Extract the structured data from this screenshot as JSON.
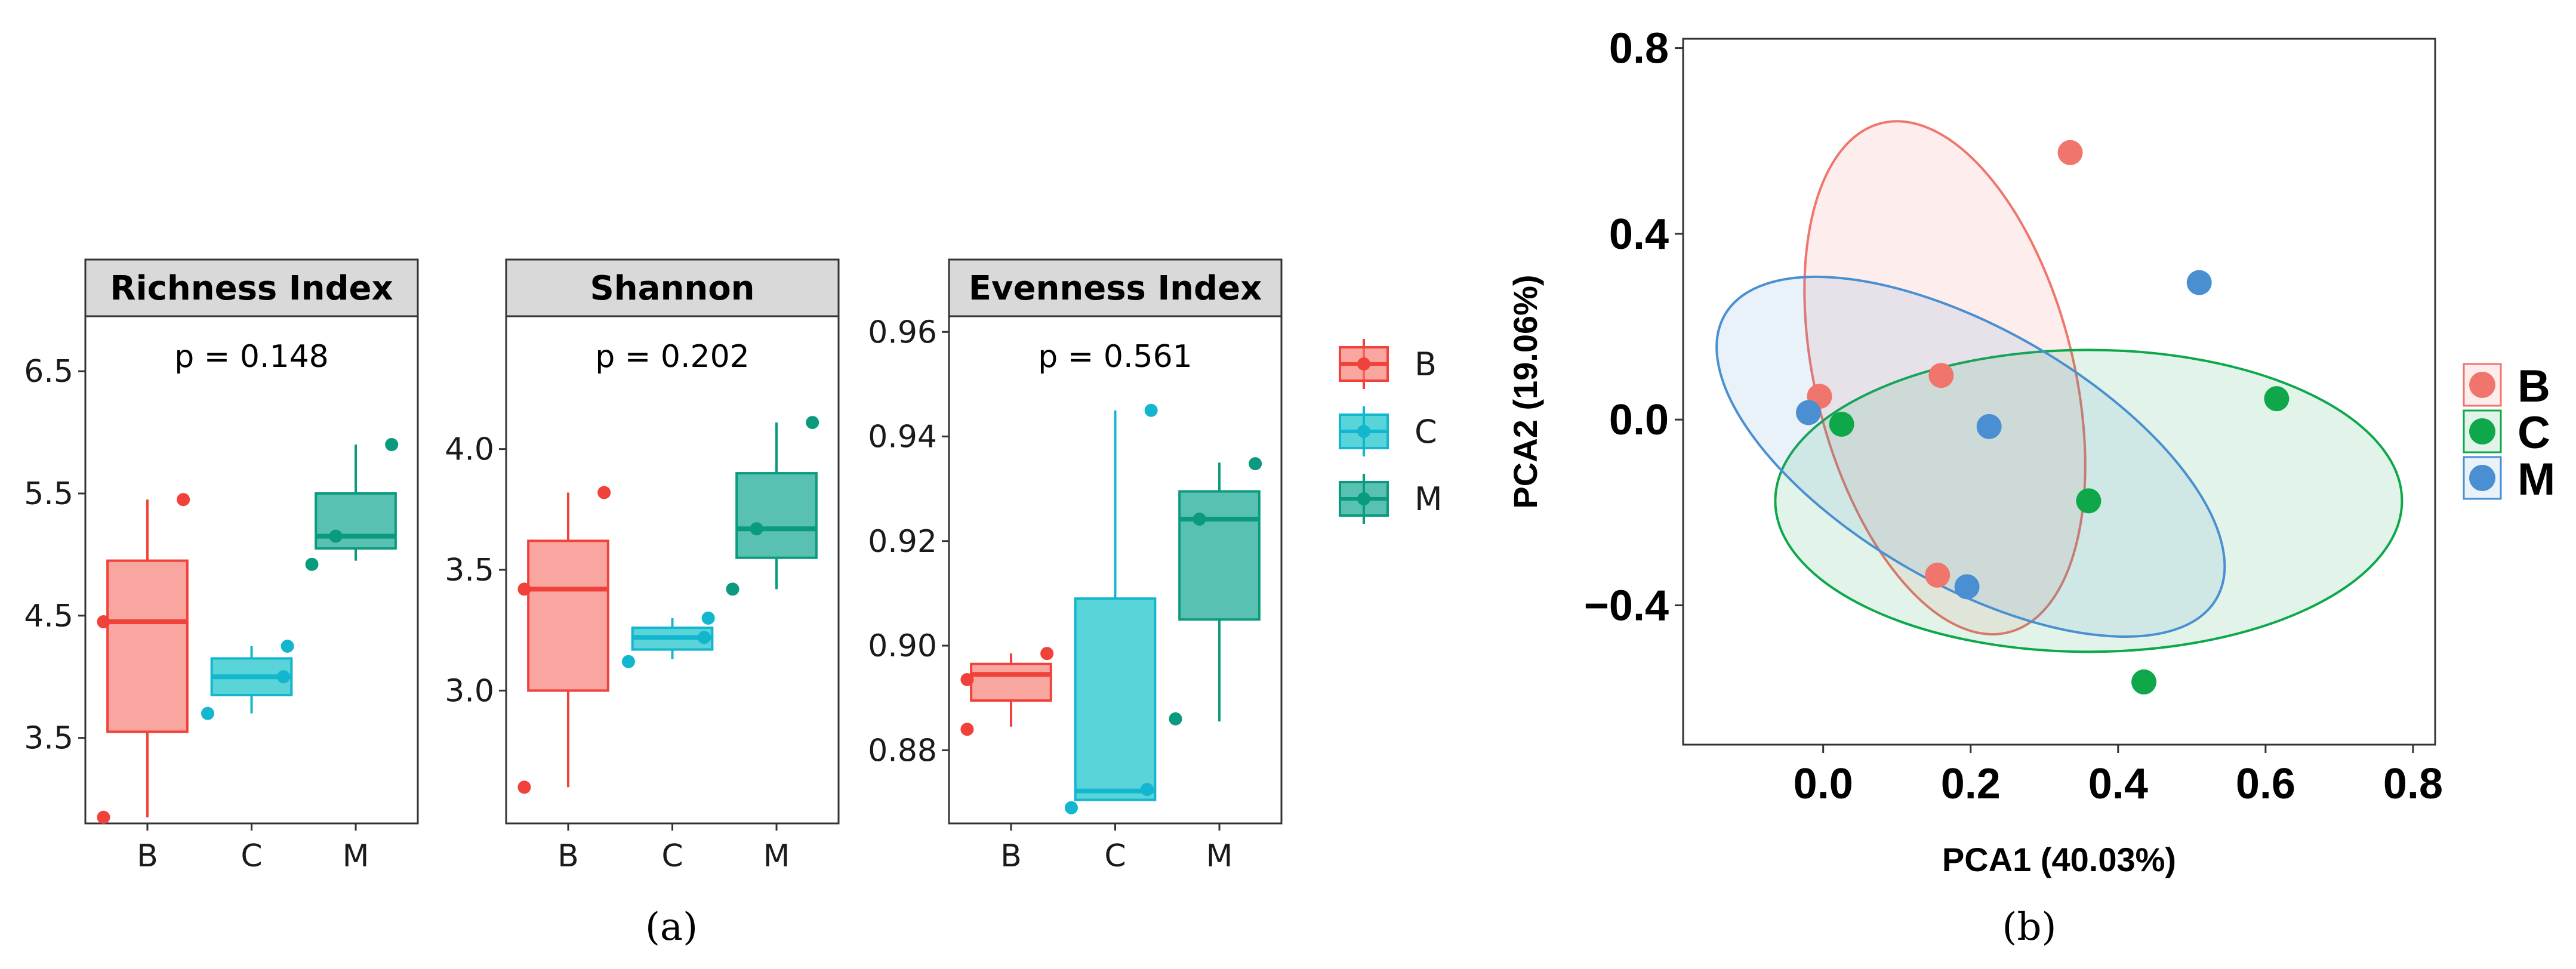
{
  "groups": [
    "B",
    "C",
    "M"
  ],
  "colors": {
    "box": {
      "B": "#F8766D",
      "C": "#00BFC4",
      "M": "#00A087"
    },
    "box_line": {
      "B": "#F0413A",
      "C": "#13B6CF",
      "M": "#0A9A7E"
    },
    "pca": {
      "B": "#F0766D",
      "C": "#0EA84A",
      "M": "#4A8FD1"
    }
  },
  "captions": {
    "a": "(a)",
    "b": "(b)"
  },
  "chart_data": [
    {
      "type": "box",
      "title": "Richness Index",
      "p_label": "p = 0.148",
      "ylim": [
        2.8,
        6.95
      ],
      "yticks": [
        3.5,
        4.5,
        5.5,
        6.5
      ],
      "ytick_labels": [
        "3.5",
        "4.5",
        "5.5",
        "6.5"
      ],
      "categories": [
        "B",
        "C",
        "M"
      ],
      "boxes": [
        {
          "group": "B",
          "q1": 3.55,
          "median": 4.45,
          "q3": 4.95,
          "lower": 2.85,
          "upper": 5.45,
          "mean": 4.45,
          "points": [
            5.45,
            2.85
          ]
        },
        {
          "group": "C",
          "q1": 3.85,
          "median": 4.0,
          "q3": 4.15,
          "lower": 3.7,
          "upper": 4.25,
          "mean": 4.0,
          "points": [
            4.25,
            3.7
          ]
        },
        {
          "group": "M",
          "q1": 5.05,
          "median": 5.15,
          "q3": 5.5,
          "lower": 4.95,
          "upper": 5.9,
          "mean": 5.15,
          "points": [
            5.9,
            4.92
          ]
        }
      ]
    },
    {
      "type": "box",
      "title": "Shannon",
      "p_label": "p = 0.202",
      "ylim": [
        2.45,
        4.55
      ],
      "yticks": [
        3.0,
        3.5,
        4.0
      ],
      "ytick_labels": [
        "3.0",
        "3.5",
        "4.0"
      ],
      "categories": [
        "B",
        "C",
        "M"
      ],
      "boxes": [
        {
          "group": "B",
          "q1": 3.0,
          "median": 3.42,
          "q3": 3.62,
          "lower": 2.6,
          "upper": 3.82,
          "mean": 3.42,
          "points": [
            3.82,
            2.6
          ]
        },
        {
          "group": "C",
          "q1": 3.17,
          "median": 3.22,
          "q3": 3.26,
          "lower": 3.13,
          "upper": 3.3,
          "mean": 3.22,
          "points": [
            3.3,
            3.12
          ]
        },
        {
          "group": "M",
          "q1": 3.55,
          "median": 3.67,
          "q3": 3.9,
          "lower": 3.42,
          "upper": 4.11,
          "mean": 3.67,
          "points": [
            4.11,
            3.42
          ]
        }
      ]
    },
    {
      "type": "box",
      "title": "Evenness Index",
      "p_label": "p = 0.561",
      "ylim": [
        0.866,
        0.963
      ],
      "yticks": [
        0.88,
        0.9,
        0.92,
        0.94,
        0.96
      ],
      "ytick_labels": [
        "0.88",
        "0.90",
        "0.92",
        "0.94",
        "0.96"
      ],
      "categories": [
        "B",
        "C",
        "M"
      ],
      "boxes": [
        {
          "group": "B",
          "q1": 0.8895,
          "median": 0.8945,
          "q3": 0.8965,
          "lower": 0.8845,
          "upper": 0.8985,
          "mean": 0.8935,
          "points": [
            0.8985,
            0.884
          ]
        },
        {
          "group": "C",
          "q1": 0.8705,
          "median": 0.8722,
          "q3": 0.909,
          "lower": 0.8705,
          "upper": 0.945,
          "mean": 0.8725,
          "points": [
            0.945,
            0.869
          ]
        },
        {
          "group": "M",
          "q1": 0.905,
          "median": 0.9242,
          "q3": 0.9295,
          "lower": 0.8855,
          "upper": 0.935,
          "mean": 0.9242,
          "points": [
            0.9348,
            0.886
          ]
        }
      ]
    },
    {
      "type": "scatter",
      "xlabel": "PCA1 (40.03%)",
      "ylabel": "PCA2 (19.06%)",
      "xlim": [
        -0.19,
        0.83
      ],
      "ylim": [
        -0.7,
        0.82
      ],
      "xticks": [
        0.0,
        0.2,
        0.4,
        0.6,
        0.8
      ],
      "xtick_labels": [
        "0.0",
        "0.2",
        "0.4",
        "0.6",
        "0.8"
      ],
      "yticks": [
        -0.4,
        0.0,
        0.4,
        0.8
      ],
      "ytick_labels": [
        "−0.4",
        "0.0",
        "0.4",
        "0.8"
      ],
      "series": [
        {
          "name": "B",
          "points": [
            [
              -0.005,
              0.05
            ],
            [
              0.16,
              0.095
            ],
            [
              0.335,
              0.575
            ],
            [
              0.155,
              -0.335
            ]
          ],
          "ellipse": {
            "cx": 0.165,
            "cy": 0.09,
            "rx": 0.175,
            "ry": 0.565,
            "angle_deg": -14
          }
        },
        {
          "name": "C",
          "points": [
            [
              0.025,
              -0.01
            ],
            [
              0.36,
              -0.175
            ],
            [
              0.435,
              -0.565
            ],
            [
              0.615,
              0.045
            ]
          ],
          "ellipse": {
            "cx": 0.36,
            "cy": -0.175,
            "rx": 0.425,
            "ry": 0.325,
            "angle_deg": 0
          }
        },
        {
          "name": "M",
          "points": [
            [
              -0.02,
              0.015
            ],
            [
              0.225,
              -0.015
            ],
            [
              0.195,
              -0.36
            ],
            [
              0.51,
              0.295
            ]
          ],
          "ellipse": {
            "cx": 0.2,
            "cy": -0.08,
            "rx": 0.385,
            "ry": 0.275,
            "angle_deg": 30
          }
        }
      ],
      "legend": [
        "B",
        "C",
        "M"
      ]
    }
  ]
}
